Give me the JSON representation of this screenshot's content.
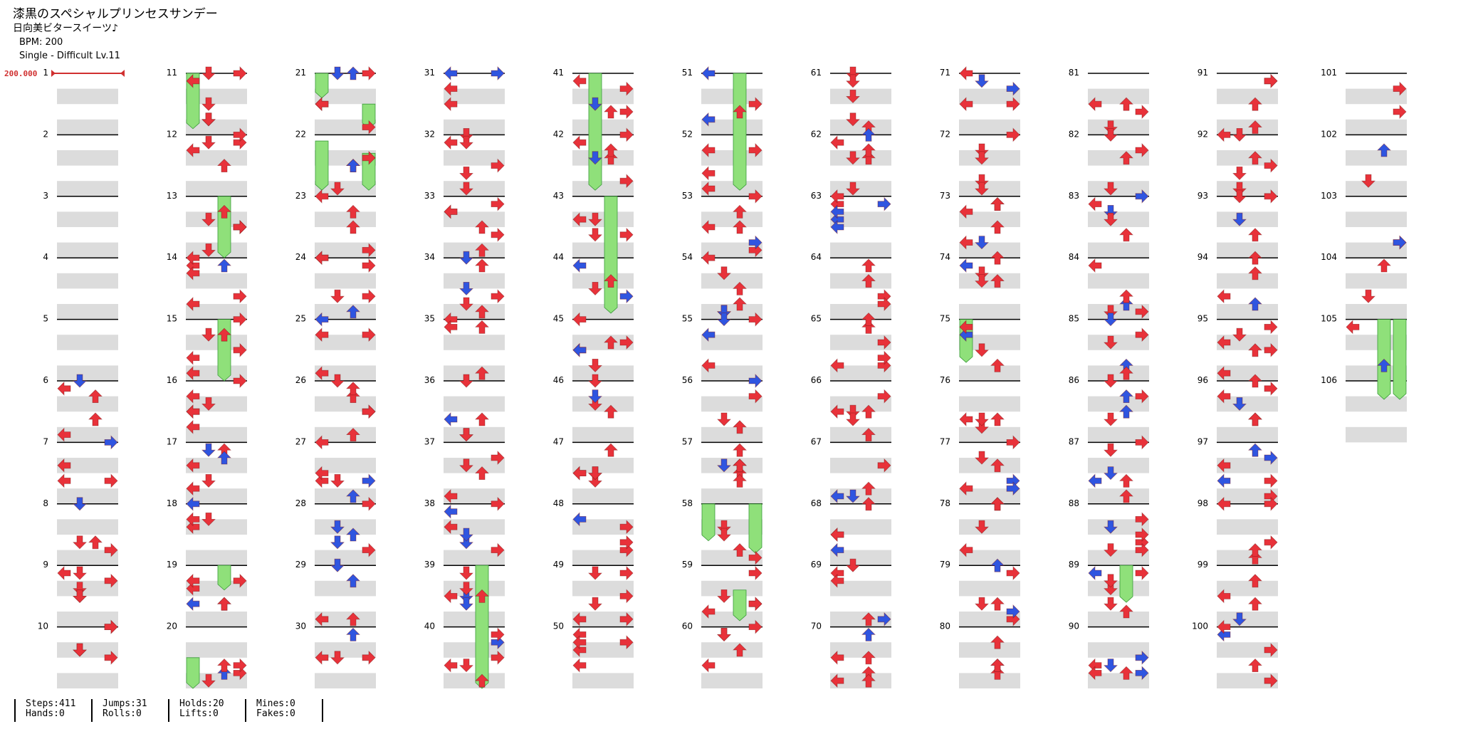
{
  "song": {
    "title": "漆黒のスペシャルプリンセスサンデー",
    "artist": "日向美ビタースイーツ♪",
    "bpm_line": "BPM: 200",
    "difficulty_line": "Single - Difficult  Lv.11"
  },
  "bpm_marker": {
    "text": "200.000",
    "measure": 1
  },
  "total_measures": 106,
  "colors": {
    "note_red": "#e8323a",
    "note_blue": "#2f55e0",
    "hold_green": "#8fe07a",
    "beat_shade": "#dcdcdc",
    "bpm_line": "#d03030"
  },
  "icons": [
    "left-arrow-icon",
    "down-arrow-icon",
    "up-arrow-icon",
    "right-arrow-icon"
  ],
  "stats": [
    {
      "top": "Steps:411",
      "bottom": "Hands:0"
    },
    {
      "top": "Jumps:31",
      "bottom": "Rolls:0"
    },
    {
      "top": "Holds:20",
      "bottom": "Lifts:0"
    },
    {
      "top": "Mines:0",
      "bottom": "Fakes:0"
    }
  ]
}
